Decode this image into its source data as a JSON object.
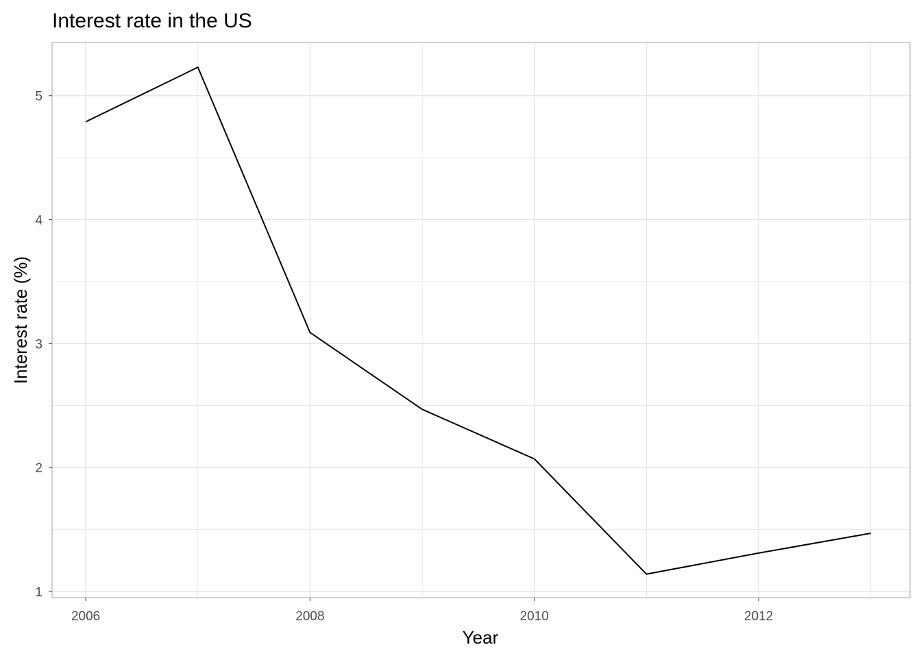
{
  "chart_data": {
    "type": "line",
    "title": "Interest rate in the US",
    "xlabel": "Year",
    "ylabel": "Interest rate (%)",
    "x": [
      2006,
      2007,
      2008,
      2009,
      2010,
      2011,
      2012,
      2013
    ],
    "series": [
      {
        "values": [
          4.79,
          5.23,
          3.09,
          2.47,
          2.07,
          1.14,
          1.31,
          1.47
        ]
      }
    ],
    "xlim": [
      2005.7,
      2013.35
    ],
    "ylim": [
      0.95,
      5.43
    ],
    "x_ticks": [
      2006,
      2008,
      2010,
      2012
    ],
    "x_tick_labels": [
      "2006",
      "2008",
      "2010",
      "2012"
    ],
    "y_ticks": [
      1,
      2,
      3,
      4,
      5
    ],
    "y_tick_labels": [
      "1",
      "2",
      "3",
      "4",
      "5"
    ],
    "grid": true,
    "legend": "none",
    "colors": {
      "line": "#000000",
      "grid": "#dedede",
      "panel_border": "#b3b3b3",
      "tick_text": "#4d4d4d"
    }
  }
}
